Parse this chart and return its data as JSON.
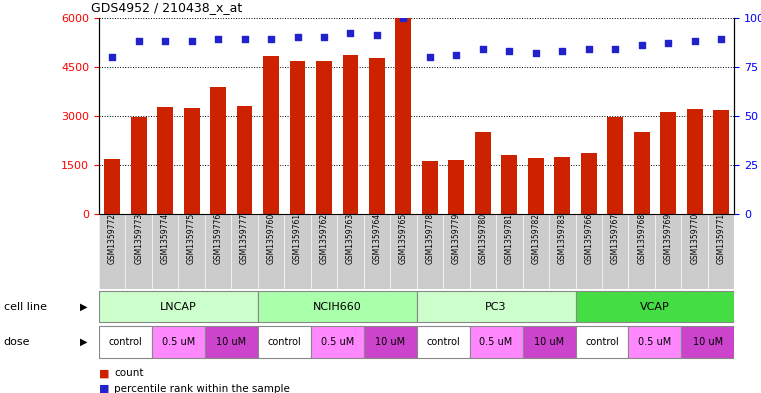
{
  "title": "GDS4952 / 210438_x_at",
  "samples": [
    "GSM1359772",
    "GSM1359773",
    "GSM1359774",
    "GSM1359775",
    "GSM1359776",
    "GSM1359777",
    "GSM1359760",
    "GSM1359761",
    "GSM1359762",
    "GSM1359763",
    "GSM1359764",
    "GSM1359765",
    "GSM1359778",
    "GSM1359779",
    "GSM1359780",
    "GSM1359781",
    "GSM1359782",
    "GSM1359783",
    "GSM1359766",
    "GSM1359767",
    "GSM1359768",
    "GSM1359769",
    "GSM1359770",
    "GSM1359771"
  ],
  "counts": [
    1700,
    2980,
    3270,
    3230,
    3870,
    3310,
    4830,
    4670,
    4680,
    4870,
    4760,
    5980,
    1620,
    1660,
    2500,
    1800,
    1720,
    1760,
    1880,
    2980,
    2500,
    3130,
    3220,
    3170
  ],
  "percentile_ranks": [
    80,
    88,
    88,
    88,
    89,
    89,
    89,
    90,
    90,
    92,
    91,
    100,
    80,
    81,
    84,
    83,
    82,
    83,
    84,
    84,
    86,
    87,
    88,
    89
  ],
  "cell_lines": [
    {
      "name": "LNCAP",
      "start": 0,
      "end": 6,
      "color": "#CCFFCC"
    },
    {
      "name": "NCIH660",
      "start": 6,
      "end": 12,
      "color": "#CCFFCC"
    },
    {
      "name": "PC3",
      "start": 12,
      "end": 18,
      "color": "#CCFFCC"
    },
    {
      "name": "VCAP",
      "start": 18,
      "end": 24,
      "color": "#44CC44"
    }
  ],
  "dose_groups": [
    {
      "label": "control",
      "start": 0,
      "end": 2,
      "color": "#FFFFFF"
    },
    {
      "label": "0.5 uM",
      "start": 2,
      "end": 4,
      "color": "#FF88FF"
    },
    {
      "label": "10 uM",
      "start": 4,
      "end": 6,
      "color": "#EE66EE"
    },
    {
      "label": "control",
      "start": 6,
      "end": 8,
      "color": "#FFFFFF"
    },
    {
      "label": "0.5 uM",
      "start": 8,
      "end": 10,
      "color": "#FF88FF"
    },
    {
      "label": "10 uM",
      "start": 10,
      "end": 12,
      "color": "#EE66EE"
    },
    {
      "label": "control",
      "start": 12,
      "end": 14,
      "color": "#FFFFFF"
    },
    {
      "label": "0.5 uM",
      "start": 14,
      "end": 16,
      "color": "#FF88FF"
    },
    {
      "label": "10 uM",
      "start": 16,
      "end": 18,
      "color": "#EE66EE"
    },
    {
      "label": "control",
      "start": 18,
      "end": 20,
      "color": "#FFFFFF"
    },
    {
      "label": "0.5 uM",
      "start": 20,
      "end": 22,
      "color": "#FF88FF"
    },
    {
      "label": "10 uM",
      "start": 22,
      "end": 24,
      "color": "#EE66EE"
    }
  ],
  "bar_color": "#CC2200",
  "dot_color": "#2222CC",
  "ylim_left": [
    0,
    6000
  ],
  "ylim_right": [
    0,
    100
  ],
  "yticks_left": [
    0,
    1500,
    3000,
    4500,
    6000
  ],
  "yticks_right": [
    0,
    25,
    50,
    75,
    100
  ]
}
